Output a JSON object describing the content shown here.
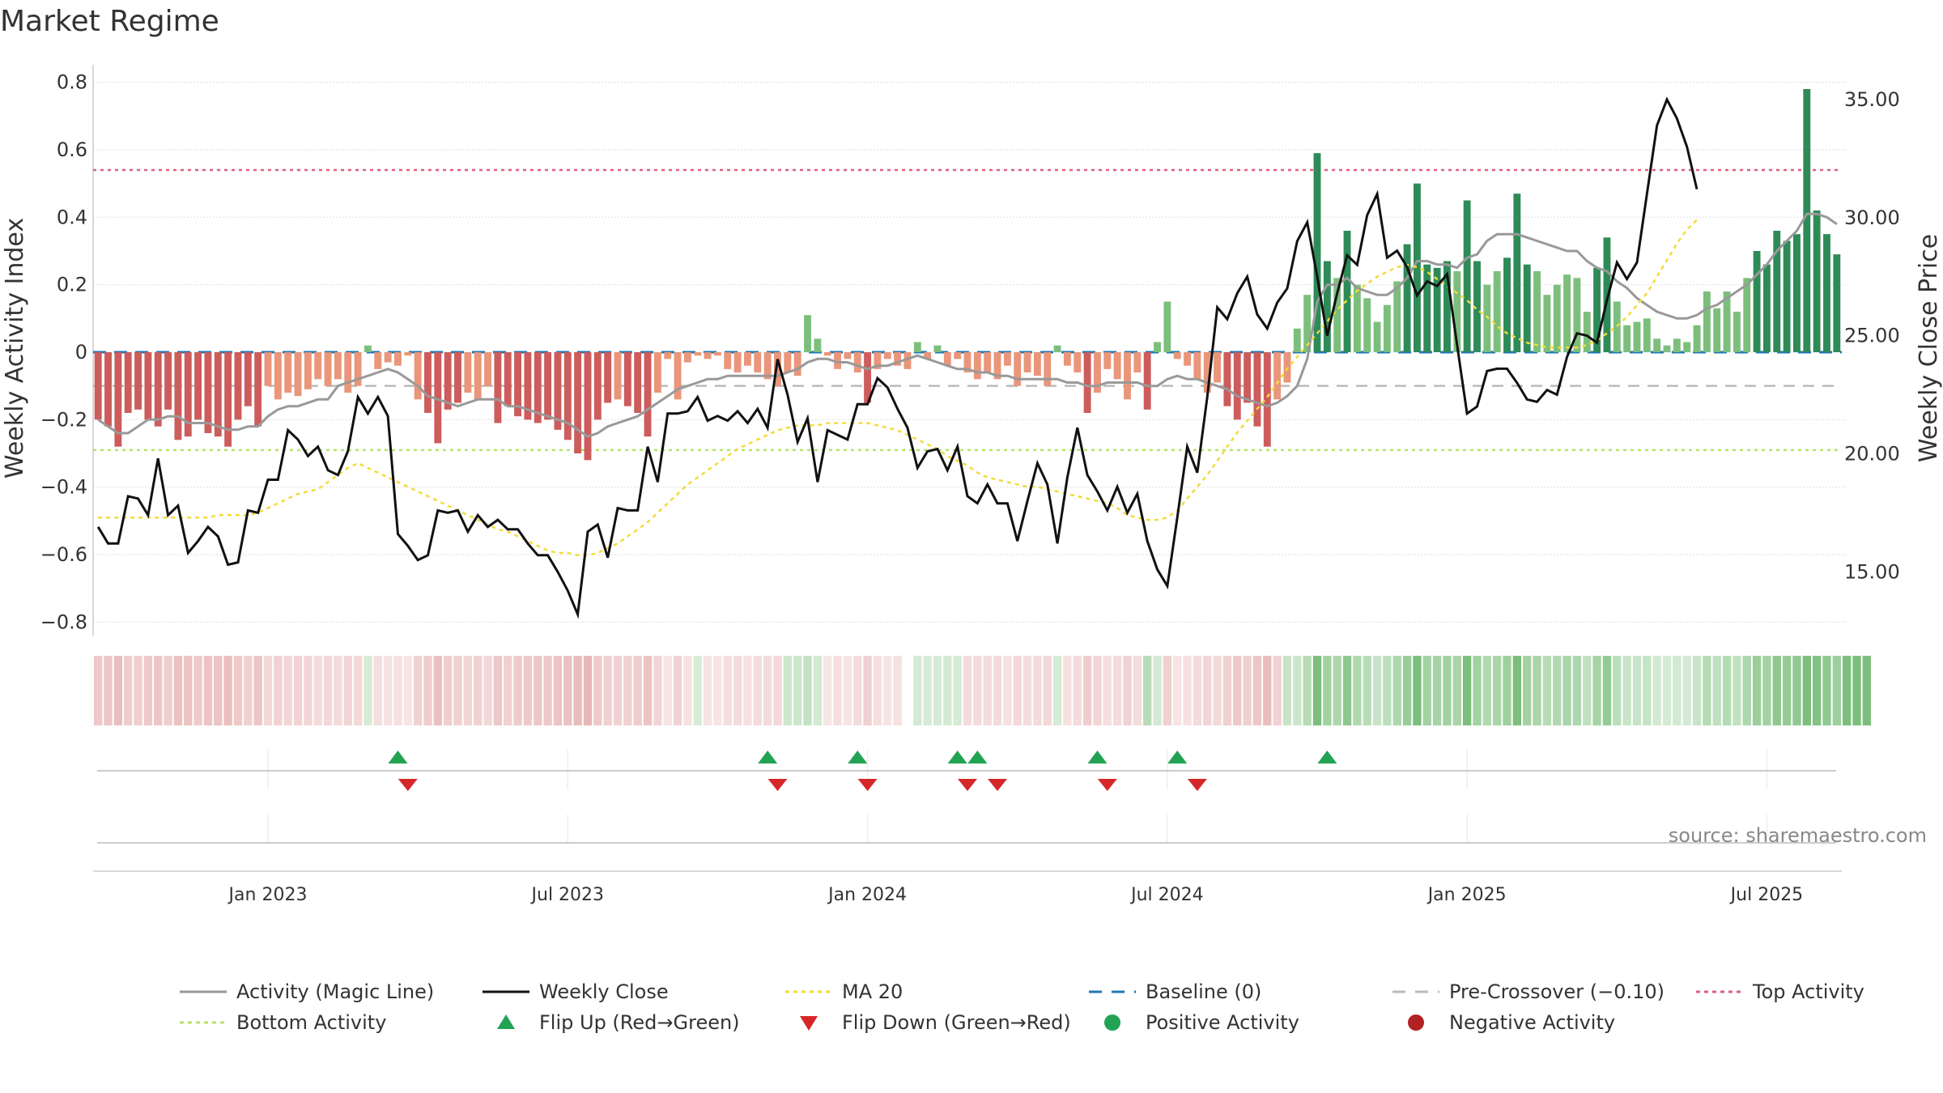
{
  "chart_data": {
    "type": "bar+line",
    "title": "Market Regime",
    "ylabel_left": "Weekly Activity Index",
    "ylabel_right": "Weekly Close Price",
    "source": "source: sharemaestro.com",
    "y_left_ticks": [
      "0.8",
      "0.6",
      "0.4",
      "0.2",
      "0",
      "−0.2",
      "−0.4",
      "−0.6",
      "−0.8"
    ],
    "y_left_values": [
      0.8,
      0.6,
      0.4,
      0.2,
      0,
      -0.2,
      -0.4,
      -0.6,
      -0.8
    ],
    "y_left_range": [
      -0.84,
      0.84
    ],
    "y_right_ticks": [
      "35.00",
      "30.00",
      "25.00",
      "20.00",
      "15.00"
    ],
    "y_right_values": [
      35,
      30,
      25,
      20,
      15
    ],
    "y_right_range": [
      12.3,
      36.3
    ],
    "x_ticks": [
      "Jan 2023",
      "Jul 2023",
      "Jan 2024",
      "Jul 2024",
      "Jan 2025",
      "Jul 2025"
    ],
    "x_tick_week_index": [
      17,
      47,
      77,
      107,
      137,
      167
    ],
    "top_activity": 0.54,
    "bottom_activity": -0.29,
    "pre_crossover": -0.1,
    "baseline": 0,
    "activity": [
      -0.2,
      -0.22,
      -0.28,
      -0.18,
      -0.17,
      -0.2,
      -0.22,
      -0.17,
      -0.26,
      -0.25,
      -0.2,
      -0.24,
      -0.25,
      -0.28,
      -0.2,
      -0.16,
      -0.22,
      -0.1,
      -0.14,
      -0.12,
      -0.13,
      -0.11,
      -0.08,
      -0.1,
      -0.08,
      -0.12,
      -0.1,
      0.02,
      -0.05,
      -0.03,
      -0.04,
      -0.01,
      -0.14,
      -0.18,
      -0.27,
      -0.17,
      -0.15,
      -0.12,
      -0.14,
      -0.1,
      -0.21,
      -0.16,
      -0.19,
      -0.2,
      -0.21,
      -0.2,
      -0.23,
      -0.26,
      -0.3,
      -0.32,
      -0.2,
      -0.15,
      -0.14,
      -0.16,
      -0.18,
      -0.25,
      -0.12,
      -0.02,
      -0.14,
      -0.03,
      -0.01,
      -0.02,
      -0.01,
      -0.05,
      -0.06,
      -0.04,
      -0.06,
      -0.08,
      -0.1,
      -0.06,
      -0.07,
      0.11,
      0.04,
      -0.01,
      -0.05,
      -0.02,
      -0.06,
      -0.15,
      -0.05,
      -0.02,
      -0.04,
      -0.05,
      0.03,
      -0.02,
      0.02,
      -0.04,
      -0.02,
      -0.06,
      -0.08,
      -0.06,
      -0.08,
      -0.04,
      -0.1,
      -0.06,
      -0.07,
      -0.1,
      0.02,
      -0.04,
      -0.06,
      -0.18,
      -0.12,
      -0.05,
      -0.08,
      -0.14,
      -0.06,
      -0.17,
      0.03,
      0.15,
      -0.02,
      -0.04,
      -0.08,
      -0.12,
      -0.09,
      -0.16,
      -0.2,
      -0.15,
      -0.22,
      -0.28,
      -0.14,
      -0.09,
      0.07,
      0.17,
      0.59,
      0.27,
      0.22,
      0.36,
      0.2,
      0.16,
      0.09,
      0.14,
      0.21,
      0.32,
      0.5,
      0.26,
      0.25,
      0.27,
      0.24,
      0.45,
      0.27,
      0.2,
      0.24,
      0.28,
      0.47,
      0.26,
      0.24,
      0.17,
      0.2,
      0.23,
      0.22,
      0.12,
      0.25,
      0.34,
      0.15,
      0.08,
      0.09,
      0.1,
      0.04,
      0.02,
      0.04,
      0.03,
      0.08,
      0.18,
      0.13,
      0.18,
      0.12,
      0.22,
      0.3,
      0.26,
      0.36,
      0.33,
      0.35,
      0.78,
      0.42,
      0.35,
      0.29
    ],
    "magic_line": [
      -0.2,
      -0.22,
      -0.24,
      -0.24,
      -0.22,
      -0.2,
      -0.2,
      -0.19,
      -0.19,
      -0.21,
      -0.21,
      -0.21,
      -0.22,
      -0.23,
      -0.23,
      -0.22,
      -0.22,
      -0.19,
      -0.17,
      -0.16,
      -0.16,
      -0.15,
      -0.14,
      -0.14,
      -0.1,
      -0.09,
      -0.08,
      -0.07,
      -0.06,
      -0.05,
      -0.06,
      -0.08,
      -0.1,
      -0.13,
      -0.14,
      -0.15,
      -0.16,
      -0.15,
      -0.14,
      -0.14,
      -0.14,
      -0.16,
      -0.16,
      -0.17,
      -0.18,
      -0.19,
      -0.2,
      -0.21,
      -0.23,
      -0.25,
      -0.24,
      -0.22,
      -0.21,
      -0.2,
      -0.19,
      -0.17,
      -0.15,
      -0.13,
      -0.11,
      -0.1,
      -0.09,
      -0.08,
      -0.08,
      -0.07,
      -0.07,
      -0.07,
      -0.07,
      -0.07,
      -0.07,
      -0.06,
      -0.05,
      -0.03,
      -0.02,
      -0.02,
      -0.03,
      -0.03,
      -0.04,
      -0.05,
      -0.04,
      -0.04,
      -0.03,
      -0.02,
      -0.01,
      -0.02,
      -0.03,
      -0.04,
      -0.05,
      -0.05,
      -0.06,
      -0.06,
      -0.07,
      -0.07,
      -0.08,
      -0.08,
      -0.08,
      -0.08,
      -0.08,
      -0.09,
      -0.09,
      -0.1,
      -0.1,
      -0.09,
      -0.09,
      -0.09,
      -0.09,
      -0.1,
      -0.1,
      -0.08,
      -0.07,
      -0.08,
      -0.08,
      -0.09,
      -0.1,
      -0.11,
      -0.13,
      -0.14,
      -0.15,
      -0.16,
      -0.15,
      -0.13,
      -0.1,
      -0.02,
      0.15,
      0.2,
      0.2,
      0.22,
      0.19,
      0.18,
      0.17,
      0.17,
      0.19,
      0.22,
      0.27,
      0.27,
      0.26,
      0.26,
      0.25,
      0.28,
      0.29,
      0.33,
      0.35,
      0.35,
      0.35,
      0.34,
      0.33,
      0.32,
      0.31,
      0.3,
      0.3,
      0.27,
      0.25,
      0.24,
      0.21,
      0.19,
      0.16,
      0.14,
      0.12,
      0.11,
      0.1,
      0.1,
      0.11,
      0.13,
      0.14,
      0.16,
      0.18,
      0.2,
      0.23,
      0.26,
      0.3,
      0.33,
      0.36,
      0.41,
      0.41,
      0.4,
      0.38
    ],
    "weekly_close": [
      16.9,
      16.2,
      16.2,
      18.2,
      18.1,
      17.4,
      19.8,
      17.4,
      17.8,
      15.8,
      16.3,
      16.9,
      16.5,
      15.3,
      15.4,
      17.6,
      17.5,
      18.9,
      18.9,
      21.0,
      20.6,
      19.9,
      20.3,
      19.3,
      19.1,
      20.1,
      22.4,
      21.7,
      22.4,
      21.6,
      16.6,
      16.1,
      15.5,
      15.7,
      17.6,
      17.5,
      17.6,
      16.7,
      17.4,
      16.9,
      17.2,
      16.8,
      16.8,
      16.2,
      15.7,
      15.7,
      15.0,
      14.2,
      13.2,
      16.7,
      17.0,
      15.6,
      17.7,
      17.6,
      17.6,
      20.3,
      18.8,
      21.7,
      21.7,
      21.8,
      22.4,
      21.4,
      21.6,
      21.4,
      21.8,
      21.3,
      21.9,
      21.1,
      24.0,
      22.5,
      20.5,
      21.5,
      18.8,
      21.0,
      20.8,
      20.6,
      22.1,
      22.1,
      23.2,
      22.8,
      21.9,
      21.1,
      19.4,
      20.1,
      20.2,
      19.3,
      20.3,
      18.2,
      17.9,
      18.7,
      17.9,
      17.9,
      16.3,
      18.0,
      19.6,
      18.7,
      16.2,
      19.0,
      21.1,
      19.1,
      18.4,
      17.6,
      18.6,
      17.5,
      18.3,
      16.3,
      15.1,
      14.4,
      17.3,
      20.3,
      19.2,
      22.4,
      26.2,
      25.7,
      26.8,
      27.5,
      25.9,
      25.3,
      26.4,
      27.0,
      29.0,
      29.8,
      27.5,
      25.0,
      26.8,
      28.4,
      28.0,
      30.1,
      31.0,
      28.3,
      28.6,
      27.9,
      26.7,
      27.3,
      27.1,
      27.6,
      24.6,
      21.7,
      22.0,
      23.5,
      23.6,
      23.6,
      23.0,
      22.3,
      22.2,
      22.7,
      22.5,
      24.1,
      25.1,
      25.0,
      24.7,
      26.5,
      28.1,
      27.4,
      28.1,
      31.0,
      33.9,
      35.0,
      34.2,
      33.0,
      31.2
    ],
    "ma20": [
      17.3,
      17.3,
      17.3,
      17.3,
      17.3,
      17.3,
      17.3,
      17.3,
      17.3,
      17.3,
      17.3,
      17.3,
      17.4,
      17.4,
      17.4,
      17.4,
      17.5,
      17.7,
      17.9,
      18.1,
      18.3,
      18.4,
      18.5,
      18.8,
      19.1,
      19.4,
      19.6,
      19.4,
      19.2,
      19.0,
      18.8,
      18.6,
      18.4,
      18.2,
      18.0,
      17.8,
      17.6,
      17.4,
      17.2,
      17.0,
      16.8,
      16.7,
      16.5,
      16.3,
      16.1,
      15.9,
      15.8,
      15.8,
      15.7,
      15.7,
      15.8,
      16.0,
      16.2,
      16.5,
      16.8,
      17.1,
      17.5,
      17.9,
      18.3,
      18.7,
      19.0,
      19.3,
      19.6,
      19.9,
      20.2,
      20.4,
      20.6,
      20.8,
      21.0,
      21.1,
      21.2,
      21.2,
      21.2,
      21.3,
      21.3,
      21.3,
      21.3,
      21.3,
      21.2,
      21.1,
      21.0,
      20.8,
      20.6,
      20.4,
      20.2,
      19.9,
      19.7,
      19.5,
      19.2,
      19.0,
      18.9,
      18.8,
      18.7,
      18.6,
      18.6,
      18.5,
      18.4,
      18.3,
      18.2,
      18.1,
      18.0,
      17.9,
      17.7,
      17.4,
      17.3,
      17.2,
      17.2,
      17.3,
      17.6,
      18.1,
      18.6,
      19.1,
      19.7,
      20.3,
      20.9,
      21.4,
      21.9,
      22.4,
      23.0,
      23.6,
      24.1,
      24.6,
      25.1,
      25.6,
      26.1,
      26.5,
      26.9,
      27.2,
      27.5,
      27.7,
      27.9,
      28.0,
      27.9,
      27.7,
      27.4,
      27.1,
      26.8,
      26.5,
      26.1,
      25.8,
      25.4,
      25.1,
      24.9,
      24.7,
      24.6,
      24.5,
      24.5,
      24.5,
      24.5,
      24.6,
      24.8,
      25.1,
      25.4,
      25.8,
      26.3,
      26.8,
      27.5,
      28.2,
      28.9,
      29.5,
      29.9
    ],
    "price_regime_note": "one segment per week: 1 = green regime, -1 = red regime, 0 = gap",
    "regime": [
      -1,
      -1,
      -1,
      -1,
      -1,
      -1,
      -1,
      -1,
      -1,
      -1,
      -1,
      -1,
      -1,
      -1,
      -1,
      -1,
      -1,
      -1,
      -1,
      -1,
      -1,
      -1,
      -1,
      -1,
      -1,
      -1,
      -1,
      1,
      -1,
      -1,
      -1,
      -1,
      -1,
      -1,
      -1,
      -1,
      -1,
      -1,
      -1,
      -1,
      -1,
      -1,
      -1,
      -1,
      -1,
      -1,
      -1,
      -1,
      -1,
      -1,
      -1,
      -1,
      -1,
      -1,
      -1,
      -1,
      -1,
      -1,
      -1,
      -1,
      1,
      -1,
      -1,
      -1,
      -1,
      -1,
      -1,
      -1,
      -1,
      1,
      1,
      1,
      1,
      -1,
      -1,
      -1,
      -1,
      -1,
      -1,
      -1,
      -1,
      0,
      1,
      1,
      1,
      1,
      1,
      -1,
      -1,
      -1,
      -1,
      -1,
      -1,
      -1,
      -1,
      -1,
      1,
      -1,
      -1,
      -1,
      -1,
      -1,
      -1,
      -1,
      -1,
      1,
      1,
      -1,
      -1,
      -1,
      -1,
      -1,
      -1,
      -1,
      -1,
      -1,
      -1,
      -1,
      -1,
      1,
      1,
      1,
      1,
      1,
      1,
      1,
      1,
      1,
      1,
      1,
      1,
      1,
      1,
      1,
      1,
      1,
      1,
      1,
      1,
      1,
      1,
      1,
      1,
      1,
      1,
      1,
      1,
      1,
      1,
      1,
      1,
      1,
      1,
      1,
      1,
      1,
      1,
      1,
      1,
      1,
      1,
      1,
      1,
      1,
      1,
      1,
      1,
      1,
      1,
      1,
      1,
      1,
      1,
      1,
      1,
      1,
      1,
      1
    ],
    "flip_up_weeks": [
      30,
      67,
      76,
      86,
      88,
      100,
      108,
      123
    ],
    "flip_down_weeks": [
      31,
      68,
      77,
      87,
      90,
      101,
      110
    ],
    "colors": {
      "strong_green": "#2e8b57",
      "light_green": "#7cbf7c",
      "strong_red": "#cd5c5c",
      "light_red": "#e9967a",
      "magic_line": "#999999",
      "weekly_close": "#111111",
      "ma20": "#f2dc3a",
      "baseline": "#1f77b4",
      "pre_crossover": "#bbbbbb",
      "top_activity": "#e0607e",
      "bottom_activity": "#b5e36b",
      "flip_up": "#22a354",
      "flip_down": "#d62728",
      "positive": "#22a354",
      "negative": "#b22222"
    }
  },
  "legend": [
    {
      "label": "Activity (Magic Line)",
      "style": "line",
      "color": "#999999"
    },
    {
      "label": "Weekly Close",
      "style": "line",
      "color": "#111111"
    },
    {
      "label": "MA 20",
      "style": "dotted",
      "color": "#f2dc3a"
    },
    {
      "label": "Baseline (0)",
      "style": "dashed",
      "color": "#1f77b4"
    },
    {
      "label": "Pre-Crossover (−0.10)",
      "style": "dashed",
      "color": "#bbbbbb"
    },
    {
      "label": "Top Activity",
      "style": "dotted",
      "color": "#e0607e"
    },
    {
      "label": "Bottom Activity",
      "style": "dotted",
      "color": "#b5e36b"
    },
    {
      "label": "Flip Up (Red→Green)",
      "style": "triangle-up",
      "color": "#22a354"
    },
    {
      "label": "Flip Down (Green→Red)",
      "style": "triangle-down",
      "color": "#d62728"
    },
    {
      "label": "Positive Activity",
      "style": "dot",
      "color": "#22a354"
    },
    {
      "label": "Negative Activity",
      "style": "dot",
      "color": "#b22222"
    }
  ]
}
